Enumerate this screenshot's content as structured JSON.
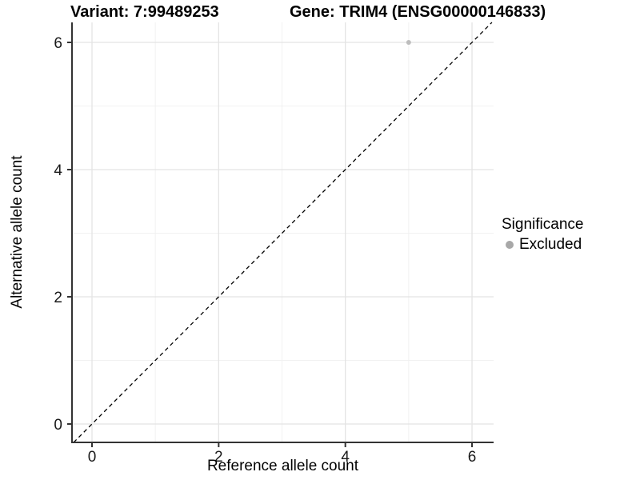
{
  "chart_data": {
    "type": "scatter",
    "title_left": "Variant: 7:99489253",
    "title_right": "Gene: TRIM4 (ENSG00000146833)",
    "xlabel": "Reference allele count",
    "ylabel": "Alternative allele count",
    "xlim": [
      -0.32,
      6.34
    ],
    "ylim": [
      -0.29,
      6.31
    ],
    "x_ticks": [
      0,
      2,
      4,
      6
    ],
    "y_ticks": [
      0,
      2,
      4,
      6
    ],
    "x_minor_ticks": [
      1,
      3,
      5
    ],
    "y_minor_ticks": [
      1,
      3,
      5
    ],
    "grid": "major-and-minor",
    "points": [
      {
        "x": 5,
        "y": 6,
        "series": "Excluded"
      }
    ],
    "reference_line": {
      "type": "abline",
      "slope": 1,
      "intercept": 0,
      "style": "dashed"
    },
    "legend": {
      "title": "Significance",
      "position": "right",
      "items": [
        {
          "label": "Excluded",
          "color": "#a8a8a8"
        }
      ]
    },
    "colors": {
      "point": "#bdbdbd",
      "grid_major": "#e4e4e4",
      "grid_minor": "#f1f1f1",
      "axis_line": "#333333",
      "tick_text": "#1a1a1a",
      "reference_line": "#000000",
      "background": "#ffffff"
    }
  }
}
